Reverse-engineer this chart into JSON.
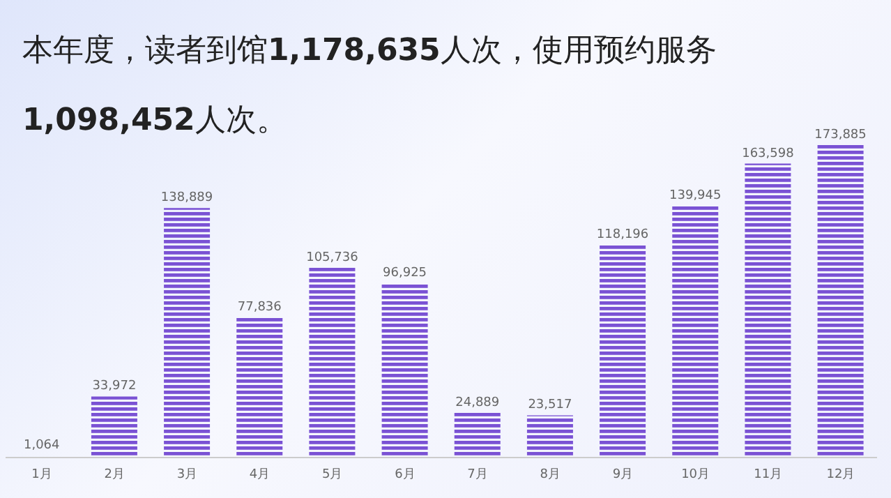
{
  "chart_data": {
    "type": "bar",
    "title": "本年度，读者到馆1,178,635人次，使用预约服务1,098,452人次。",
    "categories": [
      "1月",
      "2月",
      "3月",
      "4月",
      "5月",
      "6月",
      "7月",
      "8月",
      "9月",
      "10月",
      "11月",
      "12月"
    ],
    "values": [
      1064,
      33972,
      138889,
      77836,
      105736,
      96925,
      24889,
      23517,
      118196,
      139945,
      163598,
      173885
    ],
    "value_labels": [
      "1,064",
      "33,972",
      "138,889",
      "77,836",
      "105,736",
      "96,925",
      "24,889",
      "23,517",
      "118,196",
      "139,945",
      "163,598",
      "173,885"
    ],
    "color": "#7a52d4"
  }
}
